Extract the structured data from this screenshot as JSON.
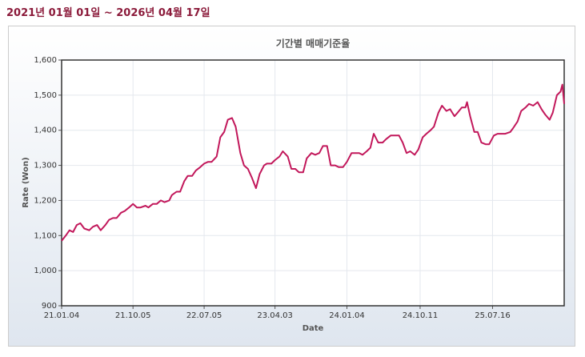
{
  "header": {
    "period": "2021년 01월 01일 ~ 2026년 04월 17일"
  },
  "chart_data": {
    "type": "line",
    "title": "기간별 매매기준율",
    "x_label": "Date",
    "y_label": "Rate (Won)",
    "grid": true,
    "color": "#c2185b",
    "x": [
      "2021-01-04",
      "2021-01-20",
      "2021-02-03",
      "2021-02-17",
      "2021-03-03",
      "2021-03-17",
      "2021-04-01",
      "2021-04-20",
      "2021-05-04",
      "2021-05-20",
      "2021-06-03",
      "2021-06-21",
      "2021-07-05",
      "2021-07-20",
      "2021-08-03",
      "2021-08-20",
      "2021-09-03",
      "2021-09-20",
      "2021-10-05",
      "2021-10-20",
      "2021-11-03",
      "2021-11-22",
      "2021-12-03",
      "2021-12-20",
      "2022-01-04",
      "2022-01-20",
      "2022-02-03",
      "2022-02-21",
      "2022-03-03",
      "2022-03-21",
      "2022-04-04",
      "2022-04-20",
      "2022-05-03",
      "2022-05-20",
      "2022-06-03",
      "2022-06-20",
      "2022-07-05",
      "2022-07-20",
      "2022-08-03",
      "2022-08-22",
      "2022-09-05",
      "2022-09-20",
      "2022-10-04",
      "2022-10-20",
      "2022-11-03",
      "2022-11-21",
      "2022-12-05",
      "2022-12-20",
      "2023-01-04",
      "2023-01-20",
      "2023-02-03",
      "2023-02-20",
      "2023-03-03",
      "2023-03-20",
      "2023-04-03",
      "2023-04-20",
      "2023-05-03",
      "2023-05-22",
      "2023-06-05",
      "2023-06-20",
      "2023-07-04",
      "2023-07-20",
      "2023-08-03",
      "2023-08-21",
      "2023-09-04",
      "2023-09-20",
      "2023-10-04",
      "2023-10-20",
      "2023-11-03",
      "2023-11-20",
      "2023-12-04",
      "2023-12-20",
      "2024-01-04",
      "2024-01-22",
      "2024-02-05",
      "2024-02-20",
      "2024-03-04",
      "2024-03-20",
      "2024-04-03",
      "2024-04-16",
      "2024-05-03",
      "2024-05-20",
      "2024-06-03",
      "2024-06-20",
      "2024-07-03",
      "2024-07-22",
      "2024-08-05",
      "2024-08-20",
      "2024-09-03",
      "2024-09-20",
      "2024-10-04",
      "2024-10-21",
      "2024-11-04",
      "2024-11-20",
      "2024-12-03",
      "2024-12-20",
      "2025-01-03",
      "2025-01-20",
      "2025-02-03",
      "2025-02-20",
      "2025-03-04",
      "2025-03-20",
      "2025-04-03",
      "2025-04-09",
      "2025-04-21",
      "2025-05-07",
      "2025-05-20",
      "2025-06-03",
      "2025-06-20",
      "2025-07-03",
      "2025-07-21",
      "2025-08-04",
      "2025-08-20",
      "2025-09-03",
      "2025-09-22",
      "2025-10-02",
      "2025-10-20",
      "2025-11-03",
      "2025-11-20",
      "2025-12-03",
      "2025-12-19",
      "2026-01-05",
      "2026-01-20",
      "2026-02-03",
      "2026-02-20",
      "2026-03-04",
      "2026-03-20",
      "2026-04-03",
      "2026-04-10",
      "2026-04-17"
    ],
    "values": [
      1085,
      1100,
      1115,
      1110,
      1130,
      1135,
      1120,
      1115,
      1125,
      1130,
      1115,
      1130,
      1145,
      1150,
      1150,
      1165,
      1170,
      1180,
      1190,
      1180,
      1180,
      1185,
      1180,
      1190,
      1190,
      1200,
      1195,
      1200,
      1215,
      1225,
      1225,
      1255,
      1270,
      1270,
      1285,
      1295,
      1305,
      1310,
      1310,
      1325,
      1380,
      1395,
      1430,
      1435,
      1410,
      1335,
      1300,
      1290,
      1265,
      1235,
      1275,
      1300,
      1305,
      1305,
      1315,
      1325,
      1340,
      1325,
      1290,
      1290,
      1280,
      1280,
      1320,
      1335,
      1330,
      1335,
      1355,
      1355,
      1300,
      1300,
      1295,
      1295,
      1310,
      1335,
      1335,
      1335,
      1330,
      1340,
      1350,
      1390,
      1365,
      1365,
      1375,
      1385,
      1385,
      1385,
      1365,
      1335,
      1340,
      1330,
      1345,
      1380,
      1390,
      1400,
      1410,
      1450,
      1470,
      1455,
      1460,
      1440,
      1450,
      1465,
      1465,
      1480,
      1440,
      1395,
      1395,
      1365,
      1360,
      1360,
      1385,
      1390,
      1390,
      1390,
      1395,
      1405,
      1425,
      1455,
      1465,
      1475,
      1470,
      1480,
      1460,
      1445,
      1430,
      1450,
      1500,
      1510,
      1530,
      1475
    ],
    "xlim": [
      "2021-01-04",
      "2026-04-17"
    ],
    "xticks": [
      {
        "value": "2021-01-04",
        "label": "21.01.04"
      },
      {
        "value": "2021-10-05",
        "label": "21.10.05"
      },
      {
        "value": "2022-07-05",
        "label": "22.07.05"
      },
      {
        "value": "2023-04-03",
        "label": "23.04.03"
      },
      {
        "value": "2024-01-04",
        "label": "24.01.04"
      },
      {
        "value": "2024-10-11",
        "label": "24.10.11"
      },
      {
        "value": "2025-07-16",
        "label": "25.07.16"
      }
    ],
    "ylim": [
      900,
      1600
    ],
    "yticks": [
      {
        "value": 900,
        "label": "900"
      },
      {
        "value": 1000,
        "label": "1,000"
      },
      {
        "value": 1100,
        "label": "1,100"
      },
      {
        "value": 1200,
        "label": "1,200"
      },
      {
        "value": 1300,
        "label": "1,300"
      },
      {
        "value": 1400,
        "label": "1,400"
      },
      {
        "value": 1500,
        "label": "1,500"
      },
      {
        "value": 1600,
        "label": "1,600"
      }
    ]
  }
}
